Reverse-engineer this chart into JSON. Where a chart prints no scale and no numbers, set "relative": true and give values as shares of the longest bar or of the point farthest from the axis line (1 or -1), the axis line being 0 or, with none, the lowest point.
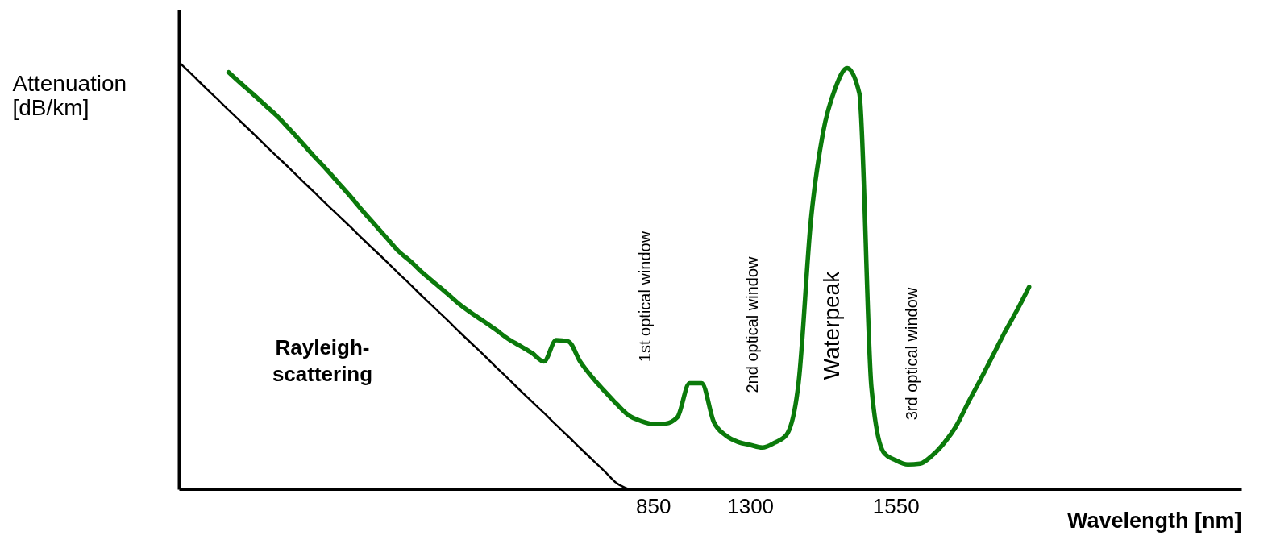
{
  "chart_data": {
    "type": "line",
    "relative": true,
    "tick_labels": "x",
    "grid": false,
    "xlabel": "Wavelength [nm]",
    "ylabel": "Attenuation\n[dB/km]",
    "categories": [
      null,
      null,
      null,
      null,
      null,
      null,
      null,
      null,
      null,
      null,
      null,
      null,
      null,
      null,
      null,
      null,
      null,
      null,
      null,
      null,
      null,
      null,
      null,
      null,
      null,
      null,
      null,
      null,
      null,
      null,
      null,
      null,
      null,
      null,
      null,
      null,
      null,
      null,
      null,
      "850",
      null,
      null,
      null,
      null,
      null,
      null,
      null,
      "1300",
      null,
      null,
      null,
      null,
      null,
      null,
      null,
      null,
      null,
      null,
      null,
      "1550",
      null,
      null,
      null,
      null,
      null,
      null,
      null,
      null,
      null,
      null,
      null
    ],
    "series": [
      {
        "color": "#000000",
        "values": [
          1.0,
          0.973,
          0.945,
          0.918,
          0.89,
          0.863,
          0.836,
          0.808,
          0.781,
          0.754,
          0.726,
          0.699,
          0.671,
          0.644,
          0.617,
          0.589,
          0.562,
          0.535,
          0.507,
          0.48,
          0.452,
          0.425,
          0.398,
          0.37,
          0.343,
          0.316,
          0.288,
          0.261,
          0.233,
          0.206,
          0.179,
          0.151,
          0.124,
          0.096,
          0.069,
          0.042,
          0.014,
          0.0,
          null,
          null,
          null,
          null,
          null,
          null,
          null,
          null,
          null,
          null,
          null,
          null,
          null,
          null,
          null,
          null,
          null,
          null,
          null,
          null,
          null,
          null,
          null,
          null,
          null,
          null,
          null,
          null,
          null,
          null,
          null,
          null,
          null
        ]
      },
      {
        "color": "#0b7a0b",
        "values": [
          null,
          null,
          null,
          null,
          0.979,
          0.953,
          0.928,
          0.902,
          0.876,
          0.846,
          0.815,
          0.783,
          0.753,
          0.721,
          0.689,
          0.655,
          0.623,
          0.591,
          0.559,
          0.535,
          0.508,
          0.484,
          0.46,
          0.435,
          0.414,
          0.395,
          0.375,
          0.354,
          0.337,
          0.32,
          0.3,
          0.35,
          0.347,
          0.299,
          0.262,
          0.23,
          0.2,
          0.173,
          0.16,
          0.153,
          0.154,
          0.169,
          0.249,
          0.249,
          0.158,
          0.126,
          0.111,
          0.104,
          0.098,
          0.109,
          0.128,
          0.252,
          0.629,
          0.836,
          0.94,
          0.989,
          0.93,
          0.239,
          0.087,
          0.068,
          0.058,
          0.06,
          0.079,
          0.109,
          0.149,
          0.205,
          0.258,
          0.313,
          0.369,
          0.42,
          0.475
        ]
      }
    ],
    "annotations": [
      "Rayleigh-\nscattering",
      "1st optical window",
      "2nd optical window",
      "Waterpeak",
      "3rd optical window"
    ]
  }
}
